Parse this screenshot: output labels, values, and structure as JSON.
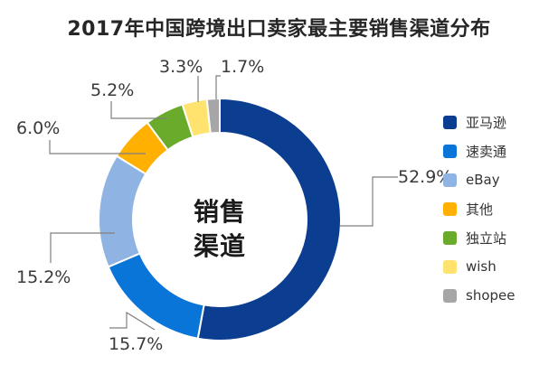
{
  "title": "2017年中国跨境出口卖家最主要销售渠道分布",
  "center_label": {
    "line1": "销售",
    "line2": "渠道"
  },
  "chart_data": {
    "type": "pie",
    "style": "donut",
    "title": "2017年中国跨境出口卖家最主要销售渠道分布",
    "legend_position": "right",
    "slices": [
      {
        "name": "亚马逊",
        "value": 52.9,
        "label": "52.9%",
        "color": "#0b3d91"
      },
      {
        "name": "速卖通",
        "value": 15.7,
        "label": "15.7%",
        "color": "#0a75d9"
      },
      {
        "name": "eBay",
        "value": 15.2,
        "label": "15.2%",
        "color": "#8fb4e3"
      },
      {
        "name": "其他",
        "value": 6.0,
        "label": "6.0%",
        "color": "#ffb000"
      },
      {
        "name": "独立站",
        "value": 5.2,
        "label": "5.2%",
        "color": "#6aab2c"
      },
      {
        "name": "wish",
        "value": 3.3,
        "label": "3.3%",
        "color": "#ffe36e"
      },
      {
        "name": "shopee",
        "value": 1.7,
        "label": "1.7%",
        "color": "#a6a6a6"
      }
    ]
  }
}
